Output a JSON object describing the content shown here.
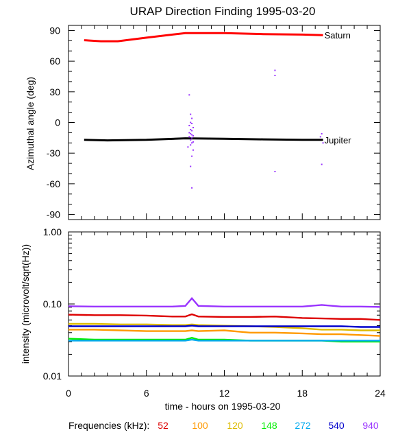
{
  "chart_data": [
    {
      "type": "line",
      "title": "URAP Direction Finding  1995-03-20",
      "ylabel": "Azimuthal angle (deg)",
      "xlim": [
        0,
        24
      ],
      "ylim": [
        -95,
        95
      ],
      "y_ticks": [
        90,
        60,
        30,
        0,
        -30,
        -60,
        -90
      ],
      "y_tick_labels": [
        "90",
        "60",
        "30",
        "0",
        "-30",
        "-60",
        "-90"
      ],
      "grid": false,
      "series": [
        {
          "name": "Saturn",
          "color": "#ff0000",
          "x": [
            1.2,
            2.5,
            3.8,
            6,
            9,
            12,
            15,
            18,
            19.6
          ],
          "values": [
            80.5,
            79.5,
            79.5,
            83,
            87.5,
            87.5,
            86.5,
            86,
            85.5
          ]
        },
        {
          "name": "Jupiter",
          "color": "#000000",
          "x": [
            1.2,
            3,
            6,
            9,
            12,
            15,
            18,
            19.6
          ],
          "values": [
            -17,
            -17.5,
            -17,
            -15.5,
            -16,
            -16.5,
            -17,
            -17
          ]
        }
      ],
      "scatter": {
        "color": "#9933ff",
        "x": [
          9.3,
          9.4,
          9.5,
          9.4,
          9.5,
          9.3,
          9.6,
          9.4,
          9.5,
          9.3,
          9.4,
          9.5,
          9.6,
          9.3,
          9.5,
          9.4,
          9.6,
          9.5,
          9.4,
          9.2,
          9.6,
          9.5,
          9.4,
          9.5,
          15.9,
          15.9,
          15.9,
          19.5,
          19.4,
          19.6,
          19.5
        ],
        "values": [
          27,
          8,
          4,
          0,
          -1,
          -3,
          -5,
          -7,
          -8,
          -10,
          -11,
          -12,
          -13,
          -14,
          -15,
          -17,
          -19,
          -20,
          -22,
          -24,
          -27,
          -33,
          -43,
          -64,
          51,
          46,
          -48,
          -11,
          -14,
          -20,
          -41
        ]
      }
    },
    {
      "type": "line",
      "ylabel": "intensity (microvolt/sqrt(Hz))",
      "xlabel": "time - hours on 1995-03-20",
      "xlim": [
        0,
        24
      ],
      "x_ticks": [
        0,
        6,
        12,
        18,
        24
      ],
      "x_tick_labels": [
        "0",
        "6",
        "12",
        "18",
        "24"
      ],
      "y_scale": "log",
      "ylim": [
        0.01,
        1.0
      ],
      "y_ticks": [
        1.0,
        0.1,
        0.01
      ],
      "y_tick_labels": [
        "1.00",
        "0.10",
        "0.01"
      ],
      "grid": false,
      "legend_title": "Frequencies (kHz):",
      "legend_placement": "bottom",
      "x": [
        0,
        2,
        4,
        6,
        8,
        9,
        9.5,
        10,
        12,
        14,
        15.9,
        18,
        19.5,
        21,
        22.5,
        24
      ],
      "series": [
        {
          "name": "52",
          "color": "#dd0000",
          "values": [
            0.071,
            0.07,
            0.07,
            0.069,
            0.067,
            0.067,
            0.072,
            0.067,
            0.066,
            0.066,
            0.067,
            0.064,
            0.063,
            0.062,
            0.062,
            0.06
          ]
        },
        {
          "name": "100",
          "color": "#ff9900",
          "values": [
            0.044,
            0.044,
            0.043,
            0.042,
            0.042,
            0.042,
            0.043,
            0.042,
            0.043,
            0.04,
            0.04,
            0.039,
            0.038,
            0.038,
            0.037,
            0.036
          ]
        },
        {
          "name": "120",
          "color": "#ddbb00",
          "values": [
            0.053,
            0.053,
            0.052,
            0.052,
            0.051,
            0.051,
            0.052,
            0.051,
            0.05,
            0.049,
            0.048,
            0.046,
            0.044,
            0.044,
            0.043,
            0.043
          ]
        },
        {
          "name": "148",
          "color": "#00ee00",
          "values": [
            0.033,
            0.032,
            0.032,
            0.032,
            0.032,
            0.032,
            0.034,
            0.032,
            0.032,
            0.031,
            0.031,
            0.031,
            0.031,
            0.03,
            0.03,
            0.03
          ]
        },
        {
          "name": "272",
          "color": "#00aaee",
          "values": [
            0.031,
            0.031,
            0.031,
            0.031,
            0.031,
            0.031,
            0.032,
            0.031,
            0.031,
            0.031,
            0.031,
            0.031,
            0.031,
            0.031,
            0.031,
            0.031
          ]
        },
        {
          "name": "540",
          "color": "#0000cc",
          "values": [
            0.049,
            0.049,
            0.049,
            0.049,
            0.049,
            0.049,
            0.05,
            0.049,
            0.049,
            0.049,
            0.049,
            0.049,
            0.049,
            0.049,
            0.048,
            0.048
          ]
        },
        {
          "name": "940",
          "color": "#9933ff",
          "values": [
            0.093,
            0.092,
            0.092,
            0.092,
            0.092,
            0.094,
            0.12,
            0.094,
            0.092,
            0.092,
            0.092,
            0.092,
            0.097,
            0.092,
            0.092,
            0.091
          ]
        }
      ]
    }
  ]
}
